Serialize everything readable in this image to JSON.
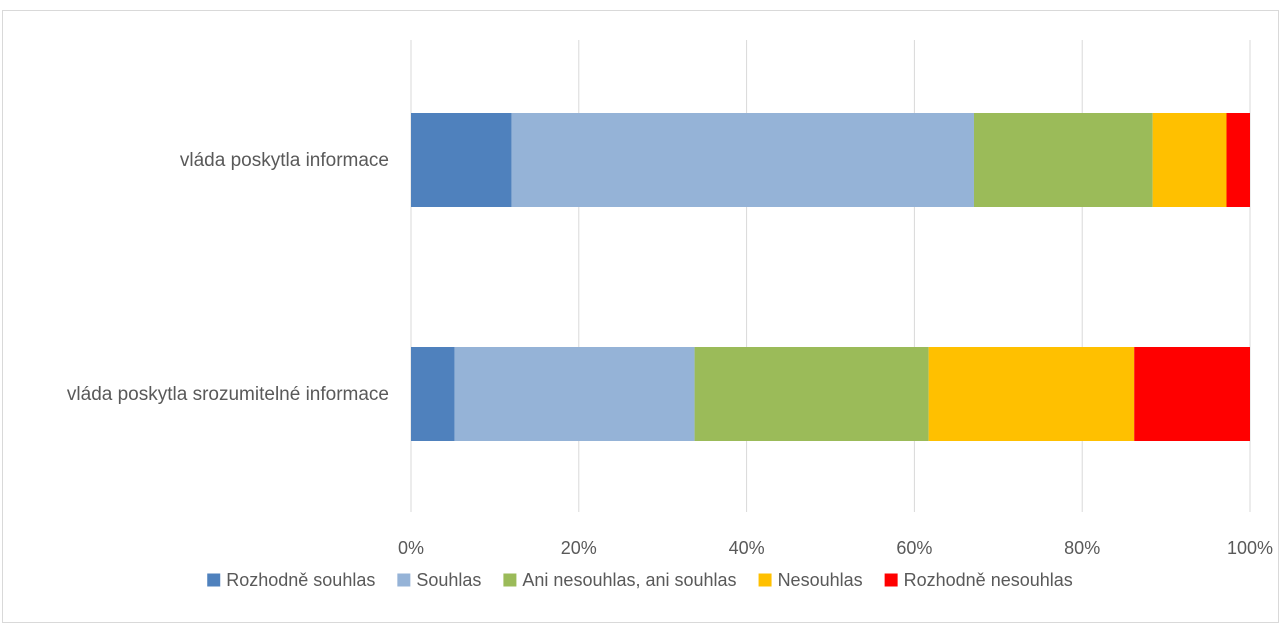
{
  "chart_data": {
    "type": "bar",
    "orientation": "horizontal",
    "stacked": "percent",
    "title": "",
    "xlabel": "",
    "ylabel": "",
    "xlim": [
      0,
      100
    ],
    "x_ticks": [
      "0%",
      "20%",
      "40%",
      "60%",
      "80%",
      "100%"
    ],
    "grid": true,
    "legend_position": "bottom",
    "categories": [
      "vláda poskytla informace",
      "vláda poskytla srozumitelné informace"
    ],
    "series": [
      {
        "name": "Rozhodně souhlas",
        "color": "#4F81BD",
        "values": [
          12.0,
          5.2
        ]
      },
      {
        "name": "Souhlas",
        "color": "#95B3D7",
        "values": [
          55.1,
          28.6
        ]
      },
      {
        "name": "Ani nesouhlas, ani souhlas",
        "color": "#9BBB59",
        "values": [
          21.3,
          27.9
        ]
      },
      {
        "name": "Nesouhlas",
        "color": "#FFC000",
        "values": [
          8.8,
          24.5
        ]
      },
      {
        "name": "Rozhodně nesouhlas",
        "color": "#FF0000",
        "values": [
          2.8,
          13.8
        ]
      }
    ]
  }
}
